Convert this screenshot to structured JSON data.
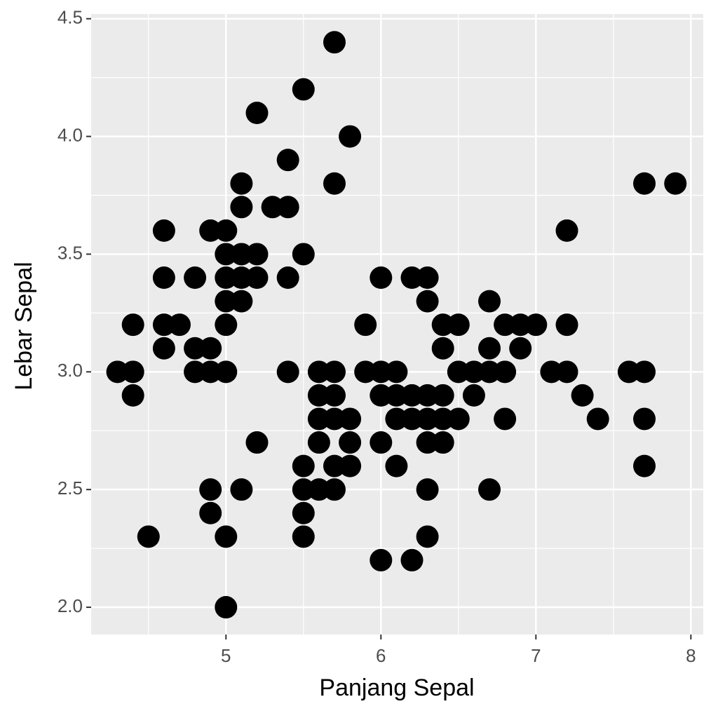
{
  "chart_data": {
    "type": "scatter",
    "x_label": "Panjang Sepal",
    "y_label": "Lebar Sepal",
    "x": [
      5.7,
      5.5,
      5.2,
      5.8,
      5.4,
      5.1,
      5.7,
      7.7,
      7.9,
      5.1,
      5.3,
      5.4,
      4.6,
      4.9,
      5.0,
      7.2,
      5.0,
      5.1,
      5.2,
      5.5,
      4.6,
      4.8,
      5.0,
      5.1,
      5.2,
      5.4,
      6.0,
      6.2,
      6.3,
      5.0,
      5.1,
      6.3,
      6.7,
      4.4,
      4.6,
      4.7,
      5.0,
      5.9,
      6.4,
      6.5,
      6.8,
      6.9,
      7.0,
      7.2,
      4.6,
      4.8,
      4.9,
      6.4,
      6.7,
      6.9,
      4.3,
      4.4,
      4.8,
      4.9,
      5.0,
      5.4,
      5.6,
      5.7,
      5.9,
      6.0,
      6.1,
      6.5,
      6.6,
      6.7,
      6.8,
      7.1,
      7.2,
      7.6,
      7.7,
      4.4,
      5.6,
      5.7,
      6.0,
      6.1,
      6.2,
      6.3,
      6.4,
      6.6,
      7.3,
      5.6,
      5.7,
      5.8,
      6.1,
      6.2,
      6.3,
      6.4,
      6.5,
      6.8,
      7.4,
      7.7,
      5.2,
      5.6,
      5.8,
      6.0,
      6.3,
      6.4,
      5.5,
      5.7,
      5.8,
      6.1,
      7.7,
      4.9,
      5.1,
      5.5,
      5.6,
      5.7,
      6.3,
      6.7,
      4.9,
      5.5,
      4.5,
      5.0,
      5.5,
      6.3,
      6.0,
      6.2,
      5.0
    ],
    "values": [
      4.4,
      4.2,
      4.1,
      4.0,
      3.9,
      3.8,
      3.8,
      3.8,
      3.8,
      3.7,
      3.7,
      3.7,
      3.6,
      3.6,
      3.6,
      3.6,
      3.5,
      3.5,
      3.5,
      3.5,
      3.4,
      3.4,
      3.4,
      3.4,
      3.4,
      3.4,
      3.4,
      3.4,
      3.4,
      3.3,
      3.3,
      3.3,
      3.3,
      3.2,
      3.2,
      3.2,
      3.2,
      3.2,
      3.2,
      3.2,
      3.2,
      3.2,
      3.2,
      3.2,
      3.1,
      3.1,
      3.1,
      3.1,
      3.1,
      3.1,
      3.0,
      3.0,
      3.0,
      3.0,
      3.0,
      3.0,
      3.0,
      3.0,
      3.0,
      3.0,
      3.0,
      3.0,
      3.0,
      3.0,
      3.0,
      3.0,
      3.0,
      3.0,
      3.0,
      2.9,
      2.9,
      2.9,
      2.9,
      2.9,
      2.9,
      2.9,
      2.9,
      2.9,
      2.9,
      2.8,
      2.8,
      2.8,
      2.8,
      2.8,
      2.8,
      2.8,
      2.8,
      2.8,
      2.8,
      2.8,
      2.7,
      2.7,
      2.7,
      2.7,
      2.7,
      2.7,
      2.6,
      2.6,
      2.6,
      2.6,
      2.6,
      2.5,
      2.5,
      2.5,
      2.5,
      2.5,
      2.5,
      2.5,
      2.4,
      2.4,
      2.3,
      2.3,
      2.3,
      2.3,
      2.2,
      2.2,
      2.0
    ],
    "color": "#000000",
    "xlim": [
      4.13,
      8.08
    ],
    "ylim": [
      1.884,
      4.52
    ],
    "xticks": [
      5,
      6,
      7,
      8
    ],
    "yticks": [
      {
        "value": 2,
        "label": "2.0"
      },
      2.5,
      {
        "value": 3,
        "label": "3.0"
      },
      3.5,
      {
        "value": 4,
        "label": "4.0"
      },
      4.5
    ],
    "x_minor_ticks": [
      4.5,
      5.5,
      6.5,
      7.5
    ],
    "y_minor_ticks": [
      2.25,
      2.75,
      3.25,
      3.75,
      4.25
    ],
    "grid": true
  }
}
